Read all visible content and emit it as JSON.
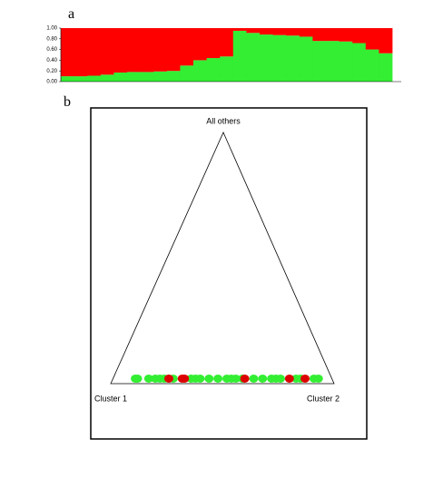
{
  "chart_data": [
    {
      "type": "bar",
      "label": "a",
      "stacked": true,
      "ylim": [
        0,
        1
      ],
      "yticks": [
        {
          "value": 0,
          "label": "0.00"
        },
        {
          "value": 0.2,
          "label": "0.20"
        },
        {
          "value": 0.4,
          "label": "0.40"
        },
        {
          "value": 0.6,
          "label": "0.60"
        },
        {
          "value": 0.8,
          "label": "0.80"
        },
        {
          "value": 1,
          "label": "1.00"
        }
      ],
      "series": [
        {
          "color": "#33ee33",
          "values": [
            0.1,
            0.1,
            0.11,
            0.13,
            0.17,
            0.18,
            0.18,
            0.19,
            0.2,
            0.3,
            0.4,
            0.44,
            0.47,
            0.95,
            0.91,
            0.88,
            0.87,
            0.86,
            0.84,
            0.76,
            0.76,
            0.75,
            0.72,
            0.6,
            0.53
          ]
        },
        {
          "color": "#ff0000",
          "values": [
            0.9,
            0.9,
            0.89,
            0.87,
            0.83,
            0.82,
            0.82,
            0.81,
            0.8,
            0.7,
            0.6,
            0.56,
            0.53,
            0.05,
            0.09,
            0.12,
            0.13,
            0.14,
            0.16,
            0.24,
            0.24,
            0.25,
            0.28,
            0.4,
            0.47
          ]
        }
      ]
    },
    {
      "type": "triangle",
      "label": "b",
      "vertices": {
        "top": "All others",
        "left": "Cluster 1",
        "right": "Cluster 2"
      },
      "xlim": [
        0,
        1
      ],
      "ylim": [
        0,
        1
      ],
      "series": [
        {
          "color": "#33ee33",
          "x": [
            0.11,
            0.12,
            0.17,
            0.2,
            0.22,
            0.24,
            0.26,
            0.28,
            0.36,
            0.38,
            0.4,
            0.44,
            0.48,
            0.52,
            0.54,
            0.56,
            0.59,
            0.64,
            0.68,
            0.72,
            0.74,
            0.76,
            0.83,
            0.85,
            0.91,
            0.93
          ],
          "values": [
            0.02,
            0.02,
            0.02,
            0.02,
            0.02,
            0.02,
            0.02,
            0.02,
            0.02,
            0.02,
            0.02,
            0.02,
            0.02,
            0.02,
            0.02,
            0.02,
            0.02,
            0.02,
            0.02,
            0.02,
            0.02,
            0.02,
            0.02,
            0.02,
            0.02,
            0.02
          ]
        },
        {
          "color": "#dd0000",
          "x": [
            0.26,
            0.32,
            0.33,
            0.6,
            0.8,
            0.87
          ],
          "values": [
            0.02,
            0.02,
            0.02,
            0.02,
            0.02,
            0.02
          ]
        }
      ]
    }
  ]
}
